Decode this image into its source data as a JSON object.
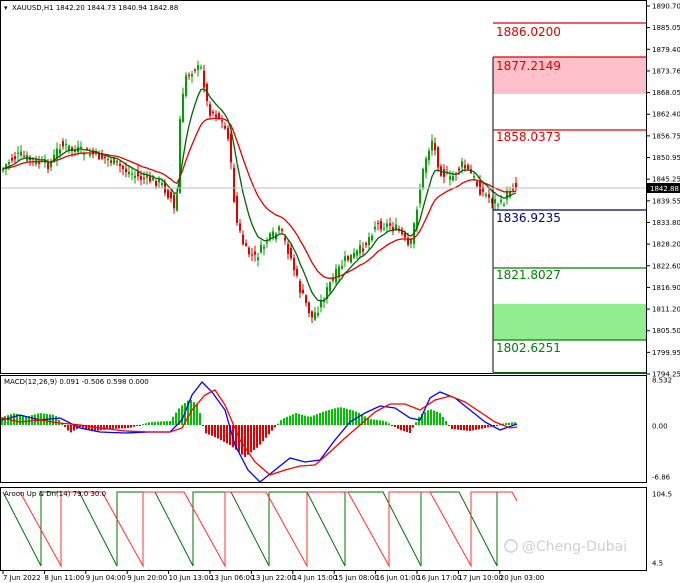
{
  "main": {
    "info": "XAUUSD,H1  1842.20 1844.73 1840.94 1842.88",
    "price_badge": "1842.88",
    "y_labels": [
      "1890.70",
      "1885.05",
      "1879.40",
      "1873.76",
      "1868.05",
      "1862.40",
      "1856.75",
      "1850.95",
      "1845.25",
      "1839.55",
      "1833.80",
      "1828.20",
      "1822.60",
      "1816.90",
      "1811.20",
      "1805.50",
      "1799.95",
      "1794.25"
    ],
    "levels": [
      {
        "name": "level-1886",
        "label": "1886.0200",
        "color": "#e00000"
      },
      {
        "name": "level-1877",
        "label": "1877.2149",
        "color": "#e00000"
      },
      {
        "name": "level-1858",
        "label": "1858.0373",
        "color": "#e00000"
      },
      {
        "name": "level-1836",
        "label": "1836.9235",
        "color": "#000080"
      },
      {
        "name": "level-1821",
        "label": "1821.8027",
        "color": "#008000"
      },
      {
        "name": "level-1802",
        "label": "1802.6251",
        "color": "#008000"
      }
    ],
    "zone_colors": {
      "sell": "#ffc0cb",
      "buy": "#90ee90"
    }
  },
  "macd": {
    "info": "MACD(12,26,9) 0.091 -0.506 0.598 0.000",
    "y_labels": [
      "8.532",
      "0.00",
      "-6.86"
    ]
  },
  "aroon": {
    "info": "Aroon Up & Dn(14) 79.0 30.0",
    "y_labels": [
      "104.5",
      "4.5"
    ]
  },
  "x_labels": [
    "7 Jun 2022",
    "8 Jun 11:00",
    "9 Jun 04:00",
    "9 Jun 20:00",
    "10 Jun 13:00",
    "13 Jun 06:00",
    "13 Jun 22:00",
    "14 Jun 15:00",
    "15 Jun 08:00",
    "16 Jun 01:00",
    "16 Jun 17:00",
    "17 Jun 10:00",
    "20 Jun 03:00"
  ],
  "watermark": "@Cheng-Dubai",
  "colors": {
    "up": "#00a000",
    "down": "#e00000",
    "ma_fast": "#006400",
    "ma_slow": "#e00000",
    "macd_line": "#0000ff",
    "signal": "#ff0000",
    "grid": "#c0c0c0"
  }
}
